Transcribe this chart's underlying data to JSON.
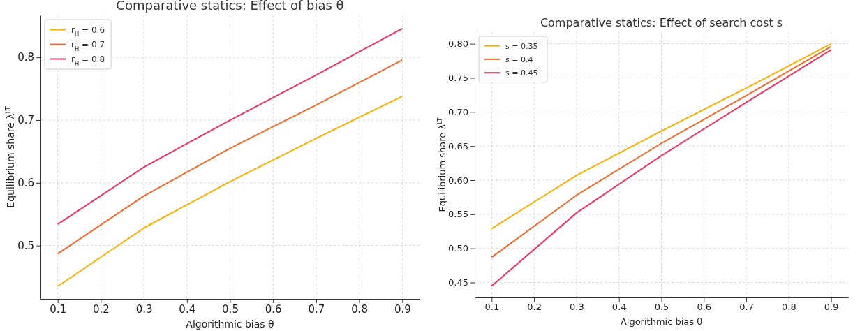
{
  "chart_data": [
    {
      "type": "line",
      "title": "Comparative statics: Effect of bias θ",
      "xlabel": "Algorithmic bias θ",
      "ylabel": "Equilibrium share λ$^{LT}$",
      "x": [
        0.1,
        0.3,
        0.5,
        0.7,
        0.9
      ],
      "series": [
        {
          "name": "r$_{H}$ = 0.6",
          "color": "#ffae00",
          "values": [
            0.435,
            0.528,
            0.602,
            0.671,
            0.738
          ]
        },
        {
          "name": "r$_{H}$ = 0.7",
          "color": "#f26a2a",
          "values": [
            0.487,
            0.579,
            0.655,
            0.724,
            0.796
          ]
        },
        {
          "name": "r$_{H}$ = 0.8",
          "color": "#f0325e",
          "values": [
            0.534,
            0.625,
            0.7,
            0.772,
            0.846
          ]
        }
      ],
      "xlim": [
        0.06,
        0.94
      ],
      "xticks": [
        0.1,
        0.2,
        0.3,
        0.4,
        0.5,
        0.6,
        0.7,
        0.8,
        0.9
      ],
      "ylim": [
        0.415,
        0.867
      ],
      "yticks": [
        0.5,
        0.6,
        0.7,
        0.8
      ],
      "grid": true,
      "legend": "top left",
      "marker": "none",
      "line_style": "solid"
    },
    {
      "type": "line",
      "title": "Comparative statics: Effect of search cost s",
      "xlabel": "Algorithmic bias θ",
      "ylabel": "Equilibrium share λ$^{LT}$",
      "x": [
        0.1,
        0.3,
        0.5,
        0.7,
        0.9
      ],
      "series": [
        {
          "name": "s = 0.35",
          "color": "#ffae00",
          "values": [
            0.529,
            0.607,
            0.672,
            0.735,
            0.8
          ]
        },
        {
          "name": "s = 0.4",
          "color": "#f26a2a",
          "values": [
            0.487,
            0.578,
            0.654,
            0.724,
            0.796
          ]
        },
        {
          "name": "s = 0.45",
          "color": "#f0325e",
          "values": [
            0.445,
            0.552,
            0.636,
            0.714,
            0.791
          ]
        }
      ],
      "xlim": [
        0.06,
        0.94
      ],
      "xticks": [
        0.1,
        0.2,
        0.3,
        0.4,
        0.5,
        0.6,
        0.7,
        0.8,
        0.9
      ],
      "ylim": [
        0.428,
        0.817
      ],
      "yticks": [
        {
          "value": 0.45,
          "label": "0.45"
        },
        {
          "value": 0.5,
          "label": "0.50"
        },
        {
          "value": 0.55,
          "label": "0.55"
        },
        {
          "value": 0.6,
          "label": "0.60"
        },
        {
          "value": 0.65,
          "label": "0.65"
        },
        {
          "value": 0.7,
          "label": "0.70"
        },
        {
          "value": 0.75,
          "label": "0.75"
        },
        {
          "value": 0.8,
          "label": "0.80"
        }
      ],
      "grid": true,
      "legend": "top left",
      "marker": "none",
      "line_style": "solid"
    }
  ]
}
